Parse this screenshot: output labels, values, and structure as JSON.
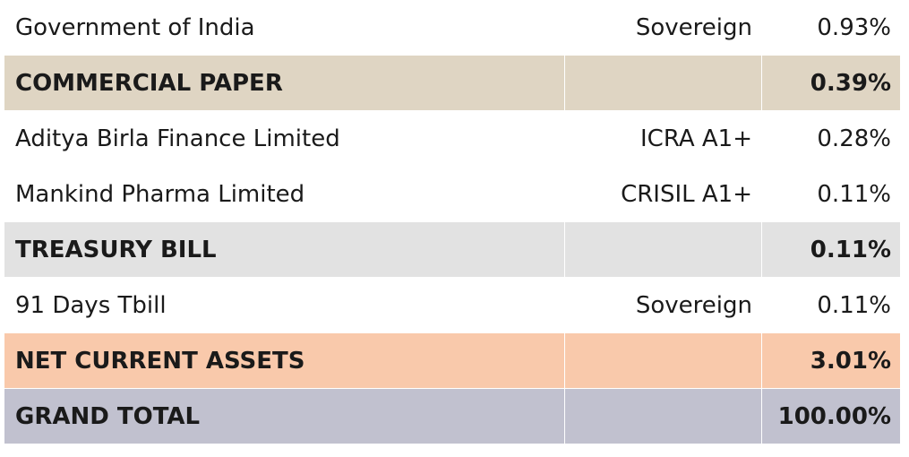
{
  "table": {
    "rows": [
      {
        "name": "Government of India",
        "rating": "Sovereign",
        "share": "0.93%"
      },
      {
        "name": "COMMERCIAL PAPER",
        "share": "0.39%",
        "color": "#dfd5c3"
      },
      {
        "name": "Aditya Birla Finance Limited",
        "rating": "ICRA A1+",
        "share": "0.28%"
      },
      {
        "name": "Mankind Pharma Limited",
        "rating": "CRISIL A1+",
        "share": "0.11%"
      },
      {
        "name": "TREASURY BILL",
        "share": "0.11%",
        "color": "#e2e2e2"
      },
      {
        "name": "91 Days Tbill",
        "rating": "Sovereign",
        "share": "0.11%"
      },
      {
        "name": "NET CURRENT ASSETS",
        "share": "3.01%",
        "color": "#f9c9ab"
      },
      {
        "name": "GRAND TOTAL",
        "share": "100.00%",
        "color": "#c1c1cf"
      }
    ]
  }
}
